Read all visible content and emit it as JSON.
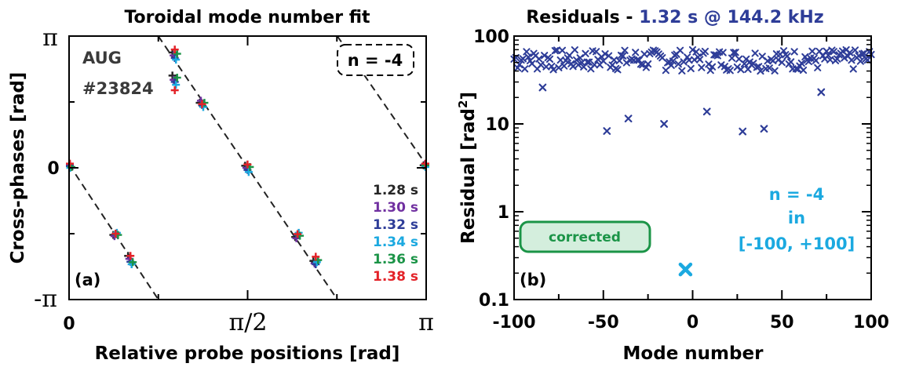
{
  "chart_data": [
    {
      "type": "scatter",
      "title": "Toroidal mode number fit",
      "xlabel": "Relative probe positions [rad]",
      "ylabel": "Cross-phases [rad]",
      "xlim": [
        0,
        3.14159
      ],
      "ylim": [
        -3.14159,
        3.14159
      ],
      "x_tick_labels": [
        "0",
        "π/2",
        "π"
      ],
      "y_tick_labels": [
        "π",
        "0",
        "-π"
      ],
      "panel_label": "(a)",
      "annotation_lines": [
        "AUG",
        "#23824"
      ],
      "fit_label": "n = -4",
      "fit_slope": -4,
      "fit_lines": [
        {
          "x": [
            0.0,
            0.785
          ],
          "y": [
            0.08,
            -3.14
          ]
        },
        {
          "x": [
            0.785,
            2.36
          ],
          "y": [
            3.14,
            -3.14
          ]
        },
        {
          "x": [
            2.36,
            3.14
          ],
          "y": [
            3.14,
            0.08
          ]
        }
      ],
      "probe_x": [
        0.0,
        0.41,
        0.54,
        0.93,
        0.93,
        1.17,
        1.57,
        2.01,
        2.17,
        3.14
      ],
      "series": [
        {
          "name": "1.28 s",
          "color": "#262626",
          "y": [
            0.08,
            -1.6,
            -2.1,
            2.75,
            2.2,
            1.55,
            0.05,
            -1.65,
            -2.22,
            0.06
          ]
        },
        {
          "name": "1.30 s",
          "color": "#7030a0",
          "y": [
            0.06,
            -1.63,
            -2.17,
            2.68,
            2.1,
            1.6,
            0.0,
            -1.68,
            -2.28,
            0.08
          ]
        },
        {
          "name": "1.32 s",
          "color": "#2e3d98",
          "y": [
            0.04,
            -1.58,
            -2.24,
            2.62,
            2.05,
            1.5,
            -0.05,
            -1.6,
            -2.3,
            0.04
          ]
        },
        {
          "name": "1.34 s",
          "color": "#1ba9e0",
          "y": [
            0.0,
            -1.55,
            -2.3,
            2.58,
            1.98,
            1.45,
            -0.1,
            -1.55,
            -2.25,
            0.02
          ]
        },
        {
          "name": "1.36 s",
          "color": "#1b9447",
          "y": [
            0.02,
            -1.6,
            -2.25,
            2.72,
            2.15,
            1.55,
            0.02,
            -1.62,
            -2.2,
            0.06
          ]
        },
        {
          "name": "1.38 s",
          "color": "#e32228",
          "y": [
            0.1,
            -1.57,
            -2.1,
            2.82,
            1.85,
            1.52,
            0.08,
            -1.58,
            -2.12,
            0.1
          ]
        }
      ]
    },
    {
      "type": "scatter",
      "title_prefix": "Residuals - ",
      "title_highlight": "1.32 s @ 144.2 kHz",
      "title_color": "#2e3d98",
      "xlabel": "Mode number",
      "ylabel_main": "Residual [rad",
      "ylabel_sup": "2",
      "ylabel_end": "]",
      "xlim": [
        -100,
        100
      ],
      "ylim": [
        0.1,
        100
      ],
      "yscale": "log",
      "x_tick_labels": [
        "-100",
        "-50",
        "0",
        "50",
        "100"
      ],
      "y_tick_labels": [
        "100",
        "10",
        "1",
        "0.1"
      ],
      "panel_label": "(b)",
      "badge_label": "corrected",
      "badge_color": "#1b9447",
      "result_lines": [
        "n = -4",
        "in",
        "[-100, +100]"
      ],
      "result_color": "#1ba9e0",
      "best_fit": {
        "x": -4,
        "y": 0.22,
        "color": "#1ba9e0"
      },
      "marker_color": "#2e3d98",
      "outliers": [
        {
          "x": -84,
          "y": 26
        },
        {
          "x": -48,
          "y": 8.3
        },
        {
          "x": -36,
          "y": 11.5
        },
        {
          "x": -16,
          "y": 10
        },
        {
          "x": 8,
          "y": 13.8
        },
        {
          "x": 28,
          "y": 8.2
        },
        {
          "x": 40,
          "y": 8.8
        },
        {
          "x": 72,
          "y": 23
        }
      ]
    }
  ]
}
